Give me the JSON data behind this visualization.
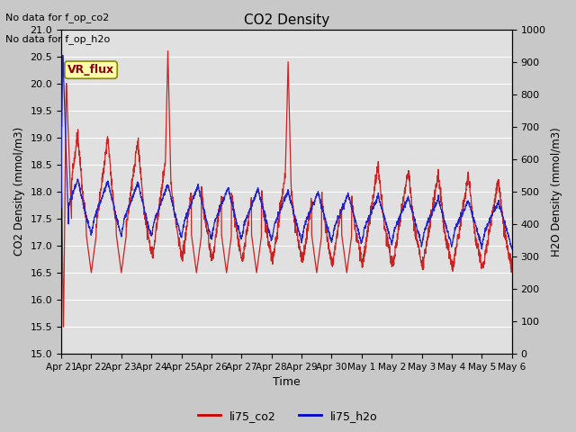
{
  "title": "CO2 Density",
  "xlabel": "Time",
  "ylabel_left": "CO2 Density (mmol/m3)",
  "ylabel_right": "H2O Density (mmol/m3)",
  "top_text_line1": "No data for f_op_co2",
  "top_text_line2": "No data for f_op_h2o",
  "legend_box_label": "VR_flux",
  "legend_entries": [
    "li75_co2",
    "li75_h2o"
  ],
  "legend_colors": [
    "#cc0000",
    "#0000cc"
  ],
  "color_co2": "#cc2222",
  "color_h2o": "#2222cc",
  "ylim_left": [
    15.0,
    21.0
  ],
  "ylim_right": [
    0,
    1000
  ],
  "xtick_labels": [
    "Apr 21",
    "Apr 22",
    "Apr 23",
    "Apr 24",
    "Apr 25",
    "Apr 26",
    "Apr 27",
    "Apr 28",
    "Apr 29",
    "Apr 30",
    "May 1",
    "May 2",
    "May 3",
    "May 4",
    "May 5",
    "May 6"
  ],
  "fig_bg_color": "#c8c8c8",
  "plot_bg_color": "#e0e0e0",
  "grid_color": "#ffffff",
  "figsize": [
    6.4,
    4.8
  ],
  "dpi": 100
}
